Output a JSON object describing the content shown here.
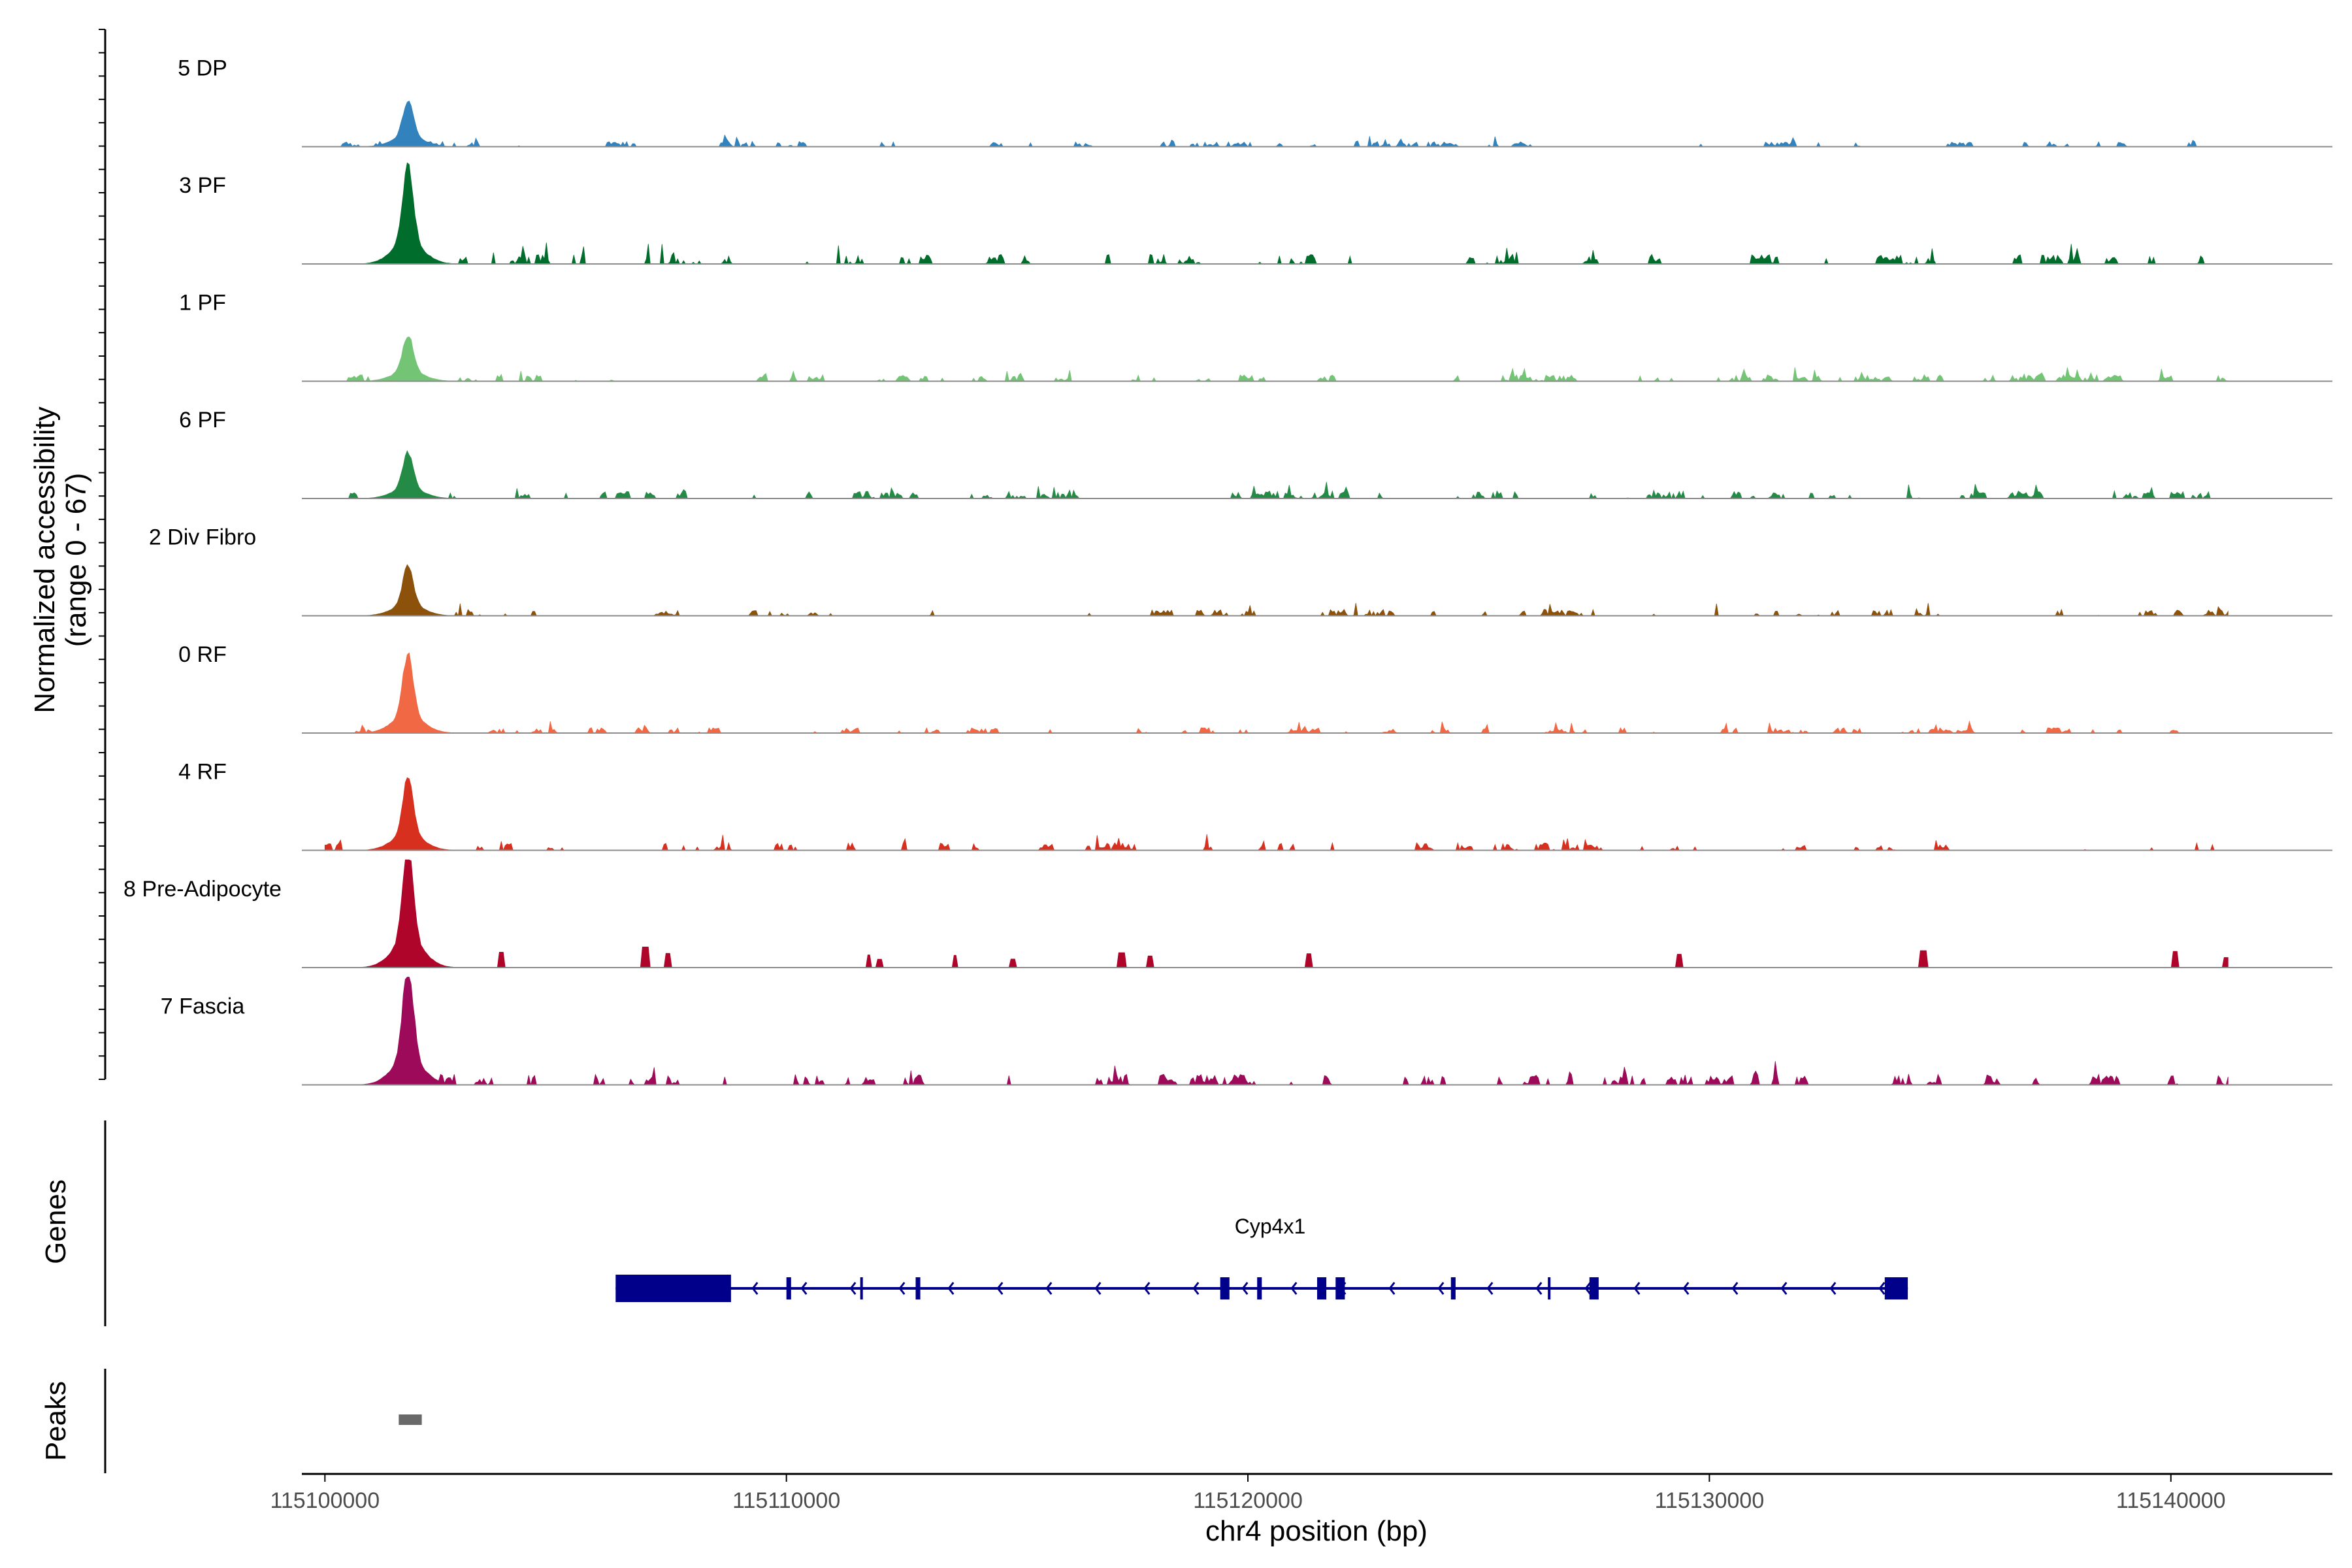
{
  "chart_data": {
    "type": "area",
    "chromosome": "chr4",
    "xlabel": "chr4 position (bp)",
    "ylabel_line1": "Normalized accessibility",
    "ylabel_line2": "(range 0 - 67)",
    "y_range": [
      0,
      67
    ],
    "x_range": [
      115099500,
      115143500
    ],
    "x_ticks": [
      115100000,
      115110000,
      115120000,
      115130000,
      115140000
    ],
    "x_tick_labels": [
      "115100000",
      "115110000",
      "115120000",
      "115130000",
      "115140000"
    ],
    "signal_start": 115100000,
    "signal_end": 115141300,
    "tracks": [
      {
        "name": "5 DP",
        "color": "#3182BD",
        "peak": 0.35,
        "bg": 0.05,
        "style": "dense"
      },
      {
        "name": "3 PF",
        "color": "#006D2C",
        "peak": 0.75,
        "bg": 0.09,
        "style": "dense"
      },
      {
        "name": "1 PF",
        "color": "#74C476",
        "peak": 0.35,
        "bg": 0.06,
        "style": "dense"
      },
      {
        "name": "6 PF",
        "color": "#238B45",
        "peak": 0.35,
        "bg": 0.07,
        "style": "dense"
      },
      {
        "name": "2 Div Fibro",
        "color": "#8C510A",
        "peak": 0.38,
        "bg": 0.06,
        "style": "dense"
      },
      {
        "name": "0 RF",
        "color": "#F16845",
        "peak": 0.6,
        "bg": 0.05,
        "style": "dense"
      },
      {
        "name": "4 RF",
        "color": "#D7301F",
        "peak": 0.55,
        "bg": 0.07,
        "style": "dense"
      },
      {
        "name": "8 Pre-Adipocyte",
        "color": "#B0052B",
        "peak": 0.95,
        "bg": 0.12,
        "style": "sparse"
      },
      {
        "name": "7 Fascia",
        "color": "#9E0A5A",
        "peak": 0.92,
        "bg": 0.1,
        "style": "dense"
      }
    ],
    "peak_center": 115101800,
    "genes_label": "Genes",
    "gene": {
      "name": "Cyp4x1",
      "start": 115106300,
      "end": 115134300,
      "strand": "-",
      "exons": [
        [
          115106300,
          115108800
        ],
        [
          115110000,
          115110100
        ],
        [
          115111600,
          115111650
        ],
        [
          115112800,
          115112900
        ],
        [
          115119400,
          115119600
        ],
        [
          115120200,
          115120300
        ],
        [
          115121500,
          115121700
        ],
        [
          115121900,
          115122100
        ],
        [
          115124400,
          115124500
        ],
        [
          115126500,
          115126550
        ],
        [
          115127400,
          115127600
        ],
        [
          115133800,
          115134300
        ]
      ]
    },
    "peaks_label": "Peaks",
    "peaks": [
      [
        115101600,
        115102100
      ]
    ],
    "colors": {
      "axis": "#000000",
      "baseline": "#8c8c8c",
      "gene": "#00008B",
      "peak_box": "#696969"
    }
  }
}
